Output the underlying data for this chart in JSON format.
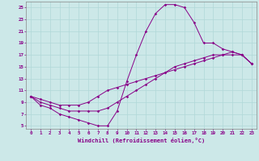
{
  "xlabel": "Windchill (Refroidissement éolien,°C)",
  "xlim": [
    -0.5,
    23.5
  ],
  "ylim": [
    4.5,
    26
  ],
  "xticks": [
    0,
    1,
    2,
    3,
    4,
    5,
    6,
    7,
    8,
    9,
    10,
    11,
    12,
    13,
    14,
    15,
    16,
    17,
    18,
    19,
    20,
    21,
    22,
    23
  ],
  "yticks": [
    5,
    7,
    9,
    11,
    13,
    15,
    17,
    19,
    21,
    23,
    25
  ],
  "background_color": "#cce8e8",
  "line_color": "#880088",
  "grid_color": "#aadddd",
  "line1_x": [
    0,
    1,
    2,
    3,
    4,
    5,
    6,
    7,
    8,
    9,
    10,
    11,
    12,
    13,
    14,
    15,
    16,
    17,
    18,
    19,
    20,
    21,
    22,
    23
  ],
  "line1_y": [
    10,
    8.5,
    8,
    7,
    6.5,
    6,
    5.5,
    5,
    5,
    7.5,
    12.5,
    17,
    21,
    24,
    25.5,
    25.5,
    25,
    22.5,
    19,
    19,
    18,
    17.5,
    17,
    15.5
  ],
  "line2_x": [
    0,
    1,
    2,
    3,
    4,
    5,
    6,
    7,
    8,
    9,
    10,
    11,
    12,
    13,
    14,
    15,
    16,
    17,
    18,
    19,
    20,
    21,
    22,
    23
  ],
  "line2_y": [
    10,
    9.5,
    9,
    8.5,
    8.5,
    8.5,
    9,
    10,
    11,
    11.5,
    12,
    12.5,
    13,
    13.5,
    14,
    14.5,
    15,
    15.5,
    16,
    16.5,
    17,
    17,
    17,
    15.5
  ],
  "line3_x": [
    0,
    1,
    2,
    3,
    4,
    5,
    6,
    7,
    8,
    9,
    10,
    11,
    12,
    13,
    14,
    15,
    16,
    17,
    18,
    19,
    20,
    21,
    22,
    23
  ],
  "line3_y": [
    10,
    9,
    8.5,
    8,
    7.5,
    7.5,
    7.5,
    7.5,
    8,
    9,
    10,
    11,
    12,
    13,
    14,
    15,
    15.5,
    16,
    16.5,
    17,
    17,
    17.5,
    17,
    15.5
  ],
  "tick_fontsize": 4.2,
  "xlabel_fontsize": 5.0
}
